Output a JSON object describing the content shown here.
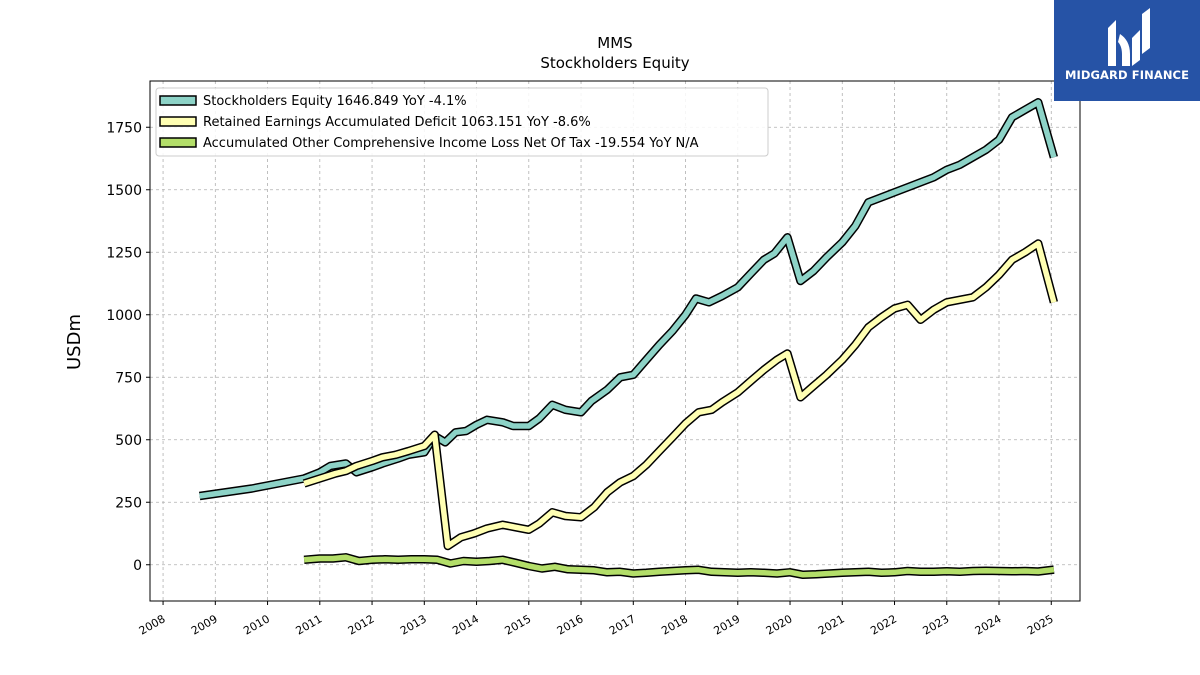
{
  "logo": {
    "text": "MIDGARD FINANCE",
    "icon": "midgard-finance-logo"
  },
  "chart_data": {
    "type": "line",
    "title": "MMS",
    "subtitle": "Stockholders  Equity",
    "xlabel": "",
    "ylabel": "USDm",
    "ylim": [
      -145,
      1935
    ],
    "xlim": [
      2007.75,
      2025.55
    ],
    "y_ticks": [
      0,
      250,
      500,
      750,
      1000,
      1250,
      1500,
      1750
    ],
    "x_ticks": [
      "2008",
      "2009",
      "2010",
      "2011",
      "2012",
      "2013",
      "2014",
      "2015",
      "2016",
      "2017",
      "2018",
      "2019",
      "2020",
      "2021",
      "2022",
      "2023",
      "2024",
      "2025"
    ],
    "grid": true,
    "legend_position": "top-left",
    "series": [
      {
        "name": "Stockholders Equity",
        "legend_label": "Stockholders Equity  1646.849 YoY -4.1%",
        "color": "#8dd3c7",
        "x": [
          2008.7,
          2009.7,
          2010.7,
          2011.0,
          2011.2,
          2011.5,
          2011.7,
          2012.0,
          2012.2,
          2012.5,
          2012.7,
          2013.0,
          2013.2,
          2013.4,
          2013.6,
          2013.8,
          2014.0,
          2014.2,
          2014.5,
          2014.7,
          2015.0,
          2015.2,
          2015.45,
          2015.7,
          2016.0,
          2016.2,
          2016.5,
          2016.75,
          2017.0,
          2017.25,
          2017.5,
          2017.75,
          2018.0,
          2018.2,
          2018.45,
          2018.7,
          2019.0,
          2019.25,
          2019.5,
          2019.7,
          2019.95,
          2020.2,
          2020.45,
          2020.7,
          2021.0,
          2021.25,
          2021.5,
          2021.75,
          2022.0,
          2022.25,
          2022.5,
          2022.75,
          2023.0,
          2023.25,
          2023.5,
          2023.75,
          2024.0,
          2024.25,
          2024.5,
          2024.75,
          2025.05
        ],
        "values": [
          275,
          305,
          345,
          370,
          395,
          405,
          370,
          390,
          405,
          425,
          440,
          450,
          515,
          490,
          530,
          535,
          560,
          580,
          570,
          555,
          555,
          585,
          640,
          620,
          610,
          655,
          700,
          750,
          760,
          820,
          880,
          935,
          1000,
          1065,
          1050,
          1075,
          1110,
          1165,
          1220,
          1245,
          1310,
          1135,
          1175,
          1230,
          1290,
          1355,
          1450,
          1470,
          1490,
          1510,
          1530,
          1550,
          1580,
          1600,
          1630,
          1660,
          1700,
          1790,
          1820,
          1850,
          1630
        ]
      },
      {
        "name": "Retained Earnings Accumulated Deficit",
        "legend_label": "Retained Earnings Accumulated Deficit  1063.151 YoY -8.6%",
        "color": "#ffffb3",
        "x": [
          2010.7,
          2011.0,
          2011.3,
          2011.5,
          2011.7,
          2012.0,
          2012.2,
          2012.45,
          2012.7,
          2013.0,
          2013.2,
          2013.45,
          2013.7,
          2013.95,
          2014.2,
          2014.5,
          2014.75,
          2015.0,
          2015.2,
          2015.45,
          2015.7,
          2016.0,
          2016.25,
          2016.5,
          2016.75,
          2017.0,
          2017.25,
          2017.5,
          2017.75,
          2018.0,
          2018.25,
          2018.5,
          2018.7,
          2019.0,
          2019.25,
          2019.5,
          2019.75,
          2019.95,
          2020.2,
          2020.45,
          2020.7,
          2021.0,
          2021.25,
          2021.5,
          2021.75,
          2022.0,
          2022.25,
          2022.5,
          2022.75,
          2023.0,
          2023.25,
          2023.5,
          2023.75,
          2024.0,
          2024.25,
          2024.5,
          2024.75,
          2025.05
        ],
        "values": [
          325,
          345,
          365,
          375,
          395,
          415,
          430,
          440,
          455,
          475,
          520,
          75,
          110,
          125,
          145,
          160,
          150,
          140,
          165,
          210,
          195,
          190,
          230,
          290,
          330,
          355,
          400,
          455,
          510,
          565,
          610,
          620,
          650,
          690,
          735,
          780,
          820,
          845,
          670,
          715,
          760,
          820,
          880,
          950,
          990,
          1025,
          1040,
          980,
          1020,
          1050,
          1060,
          1070,
          1110,
          1160,
          1220,
          1250,
          1285,
          1050
        ]
      },
      {
        "name": "Accumulated Other Comprehensive Income Loss Net Of Tax",
        "legend_label": "Accumulated Other Comprehensive Income Loss Net Of Tax  -19.554 YoY N/A",
        "color": "#b3de69",
        "x": [
          2010.7,
          2011.0,
          2011.25,
          2011.5,
          2011.75,
          2012.0,
          2012.25,
          2012.5,
          2012.75,
          2013.0,
          2013.25,
          2013.5,
          2013.75,
          2014.0,
          2014.25,
          2014.5,
          2014.75,
          2015.0,
          2015.25,
          2015.5,
          2015.75,
          2016.0,
          2016.25,
          2016.5,
          2016.75,
          2017.0,
          2017.25,
          2017.5,
          2017.75,
          2018.0,
          2018.25,
          2018.5,
          2018.75,
          2019.0,
          2019.25,
          2019.5,
          2019.75,
          2020.0,
          2020.25,
          2020.5,
          2020.75,
          2021.0,
          2021.25,
          2021.5,
          2021.75,
          2022.0,
          2022.25,
          2022.5,
          2022.75,
          2023.0,
          2023.25,
          2023.5,
          2023.75,
          2024.0,
          2024.25,
          2024.5,
          2024.75,
          2025.05
        ],
        "values": [
          20,
          25,
          25,
          30,
          15,
          20,
          22,
          20,
          22,
          22,
          20,
          5,
          15,
          12,
          15,
          20,
          8,
          -5,
          -15,
          -8,
          -18,
          -20,
          -22,
          -30,
          -28,
          -35,
          -32,
          -28,
          -25,
          -22,
          -20,
          -28,
          -30,
          -32,
          -30,
          -32,
          -35,
          -30,
          -40,
          -38,
          -35,
          -32,
          -30,
          -28,
          -32,
          -30,
          -25,
          -28,
          -28,
          -26,
          -28,
          -25,
          -24,
          -25,
          -26,
          -25,
          -27,
          -19.554
        ]
      }
    ]
  }
}
